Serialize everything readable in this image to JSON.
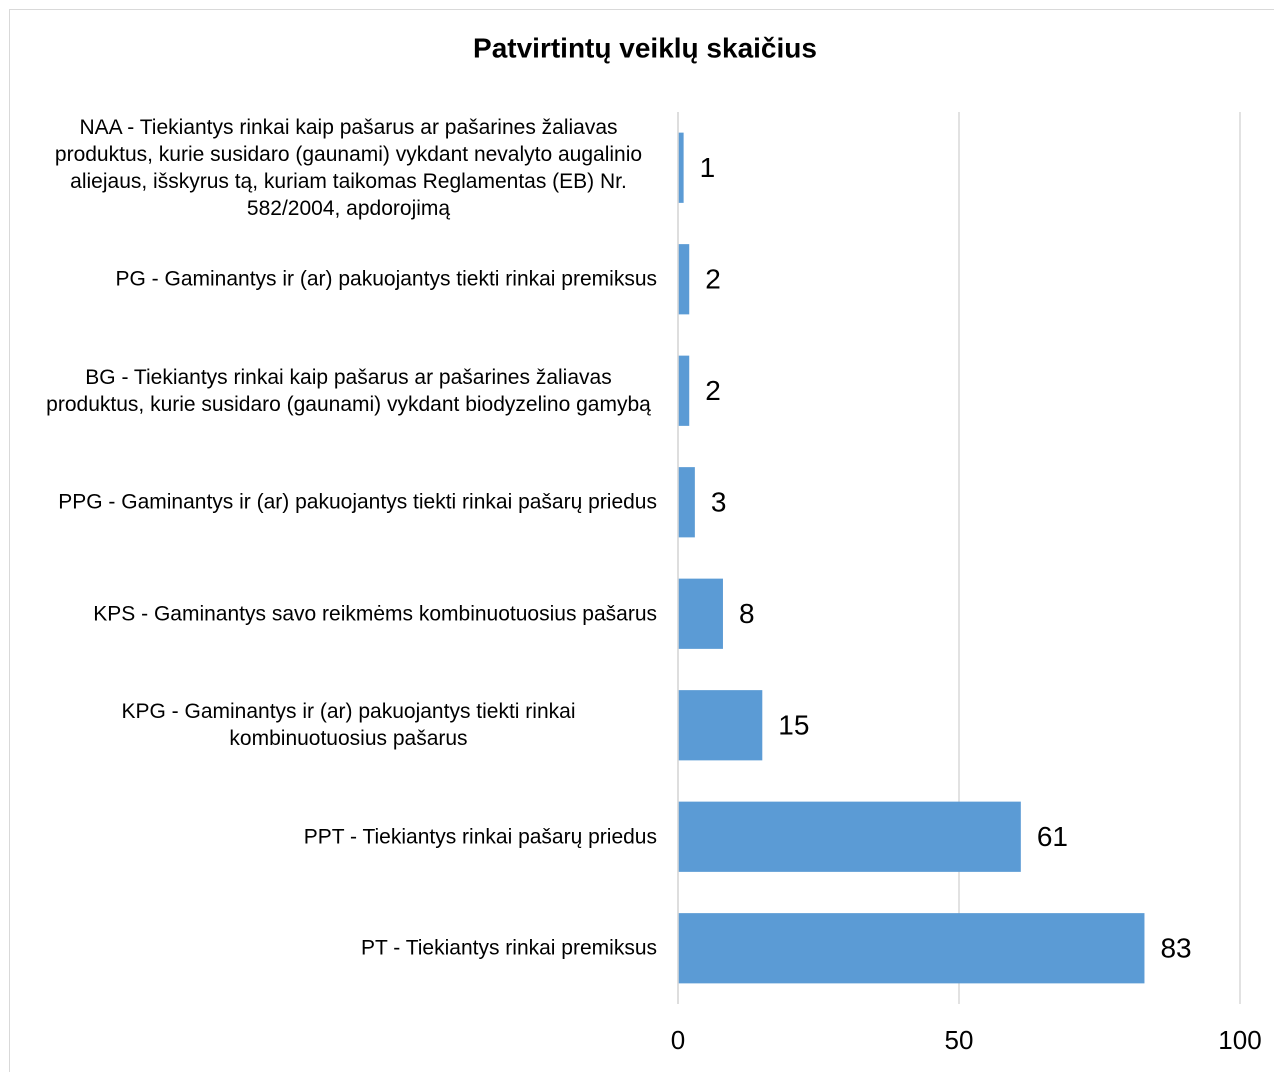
{
  "chart_data": {
    "type": "bar",
    "orientation": "horizontal",
    "title": "Patvirtintų veiklų skaičius",
    "categories": [
      "NAA - Tiekiantys rinkai kaip pašarus ar pašarines žaliavas produktus, kurie susidaro (gaunami) vykdant nevalyto augalinio aliejaus, išskyrus tą, kuriam taikomas Reglamentas (EB) Nr. 582/2004, apdorojimą",
      "PG - Gaminantys ir (ar) pakuojantys tiekti rinkai premiksus",
      "BG - Tiekiantys rinkai kaip pašarus ar pašarines žaliavas produktus, kurie susidaro (gaunami) vykdant biodyzelino gamybą",
      "PPG - Gaminantys ir (ar) pakuojantys tiekti rinkai pašarų priedus",
      "KPS - Gaminantys savo reikmėms kombinuotuosius pašarus",
      "KPG - Gaminantys ir (ar) pakuojantys tiekti rinkai kombinuotuosius pašarus",
      "PPT - Tiekiantys rinkai pašarų priedus",
      "PT - Tiekiantys rinkai premiksus"
    ],
    "values": [
      1,
      2,
      2,
      3,
      8,
      15,
      61,
      83
    ],
    "color": "#5b9bd5",
    "xlim": [
      0,
      100
    ],
    "xticks": [
      0,
      50,
      100
    ],
    "grid": true
  }
}
